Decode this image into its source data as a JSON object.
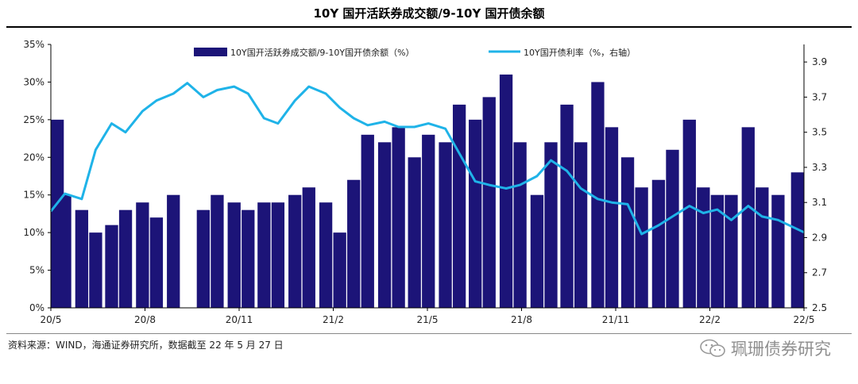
{
  "page": {
    "title": "10Y 国开活跃券成交额/9-10Y 国开债余额",
    "source": "资料来源：WIND，海通证券研究所，数据截至 22 年 5 月 27 日",
    "watermark": "珮珊债券研究"
  },
  "chart_data": {
    "type": "bar+line",
    "x_ticks": [
      "20/5",
      "20/8",
      "20/11",
      "21/2",
      "21/5",
      "21/8",
      "21/11",
      "22/2",
      "22/5"
    ],
    "y_left": {
      "ticks": [
        "0%",
        "5%",
        "10%",
        "15%",
        "20%",
        "25%",
        "30%",
        "35%"
      ],
      "range": [
        0,
        35
      ],
      "unit": "%"
    },
    "y_right": {
      "ticks": [
        "2.5",
        "2.7",
        "2.9",
        "3.1",
        "3.3",
        "3.5",
        "3.7",
        "3.9"
      ],
      "range": [
        2.5,
        4.0
      ]
    },
    "legend_position": "top",
    "series": [
      {
        "name": "10Y国开活跃券成交额/9-10Y国开债余额（%）",
        "type": "bar",
        "axis": "left",
        "color": "#1c1478",
        "points": [
          [
            "2020-05-01",
            25
          ],
          [
            "2020-05-15",
            15
          ],
          [
            "2020-06-01",
            13
          ],
          [
            "2020-06-15",
            10
          ],
          [
            "2020-07-01",
            11
          ],
          [
            "2020-07-15",
            13
          ],
          [
            "2020-08-01",
            14
          ],
          [
            "2020-08-15",
            12
          ],
          [
            "2020-09-01",
            15
          ],
          [
            "2020-09-15",
            0
          ],
          [
            "2020-10-01",
            13
          ],
          [
            "2020-10-15",
            15
          ],
          [
            "2020-11-01",
            14
          ],
          [
            "2020-11-15",
            13
          ],
          [
            "2020-12-01",
            14
          ],
          [
            "2020-12-15",
            14
          ],
          [
            "2021-01-01",
            15
          ],
          [
            "2021-01-15",
            16
          ],
          [
            "2021-02-01",
            14
          ],
          [
            "2021-02-15",
            10
          ],
          [
            "2021-03-01",
            17
          ],
          [
            "2021-03-15",
            23
          ],
          [
            "2021-04-01",
            22
          ],
          [
            "2021-04-15",
            24
          ],
          [
            "2021-05-01",
            20
          ],
          [
            "2021-05-15",
            23
          ],
          [
            "2021-06-01",
            22
          ],
          [
            "2021-06-15",
            27
          ],
          [
            "2021-07-01",
            25
          ],
          [
            "2021-07-15",
            28
          ],
          [
            "2021-08-01",
            31
          ],
          [
            "2021-08-15",
            22
          ],
          [
            "2021-09-01",
            15
          ],
          [
            "2021-09-15",
            22
          ],
          [
            "2021-10-01",
            27
          ],
          [
            "2021-10-15",
            22
          ],
          [
            "2021-11-01",
            30
          ],
          [
            "2021-11-15",
            24
          ],
          [
            "2021-12-01",
            20
          ],
          [
            "2021-12-15",
            16
          ],
          [
            "2022-01-01",
            17
          ],
          [
            "2022-01-15",
            21
          ],
          [
            "2022-02-01",
            25
          ],
          [
            "2022-02-15",
            16
          ],
          [
            "2022-03-01",
            15
          ],
          [
            "2022-03-15",
            15
          ],
          [
            "2022-04-01",
            24
          ],
          [
            "2022-04-15",
            16
          ],
          [
            "2022-05-01",
            15
          ],
          [
            "2022-05-27",
            18
          ]
        ]
      },
      {
        "name": "10Y国开债利率（%，右轴）",
        "type": "line",
        "axis": "right",
        "color": "#1fb3e8",
        "points": [
          [
            "2020-05-01",
            3.05
          ],
          [
            "2020-05-15",
            3.15
          ],
          [
            "2020-06-01",
            3.12
          ],
          [
            "2020-06-15",
            3.4
          ],
          [
            "2020-07-01",
            3.55
          ],
          [
            "2020-07-15",
            3.5
          ],
          [
            "2020-08-01",
            3.62
          ],
          [
            "2020-08-15",
            3.68
          ],
          [
            "2020-09-01",
            3.72
          ],
          [
            "2020-09-15",
            3.78
          ],
          [
            "2020-10-01",
            3.7
          ],
          [
            "2020-10-15",
            3.74
          ],
          [
            "2020-11-01",
            3.76
          ],
          [
            "2020-11-15",
            3.72
          ],
          [
            "2020-12-01",
            3.58
          ],
          [
            "2020-12-15",
            3.55
          ],
          [
            "2021-01-01",
            3.68
          ],
          [
            "2021-01-15",
            3.76
          ],
          [
            "2021-02-01",
            3.72
          ],
          [
            "2021-02-15",
            3.64
          ],
          [
            "2021-03-01",
            3.58
          ],
          [
            "2021-03-15",
            3.54
          ],
          [
            "2021-04-01",
            3.56
          ],
          [
            "2021-04-15",
            3.53
          ],
          [
            "2021-05-01",
            3.53
          ],
          [
            "2021-05-15",
            3.55
          ],
          [
            "2021-06-01",
            3.52
          ],
          [
            "2021-06-15",
            3.38
          ],
          [
            "2021-07-01",
            3.22
          ],
          [
            "2021-07-15",
            3.2
          ],
          [
            "2021-08-01",
            3.18
          ],
          [
            "2021-08-15",
            3.2
          ],
          [
            "2021-09-01",
            3.25
          ],
          [
            "2021-09-15",
            3.34
          ],
          [
            "2021-10-01",
            3.28
          ],
          [
            "2021-10-15",
            3.18
          ],
          [
            "2021-11-01",
            3.12
          ],
          [
            "2021-11-15",
            3.1
          ],
          [
            "2021-12-01",
            3.09
          ],
          [
            "2021-12-15",
            2.92
          ],
          [
            "2022-01-01",
            2.97
          ],
          [
            "2022-01-15",
            3.02
          ],
          [
            "2022-02-01",
            3.08
          ],
          [
            "2022-02-15",
            3.04
          ],
          [
            "2022-03-01",
            3.06
          ],
          [
            "2022-03-15",
            3.0
          ],
          [
            "2022-04-01",
            3.08
          ],
          [
            "2022-04-15",
            3.02
          ],
          [
            "2022-05-01",
            3.0
          ],
          [
            "2022-05-27",
            2.93
          ]
        ]
      }
    ]
  }
}
